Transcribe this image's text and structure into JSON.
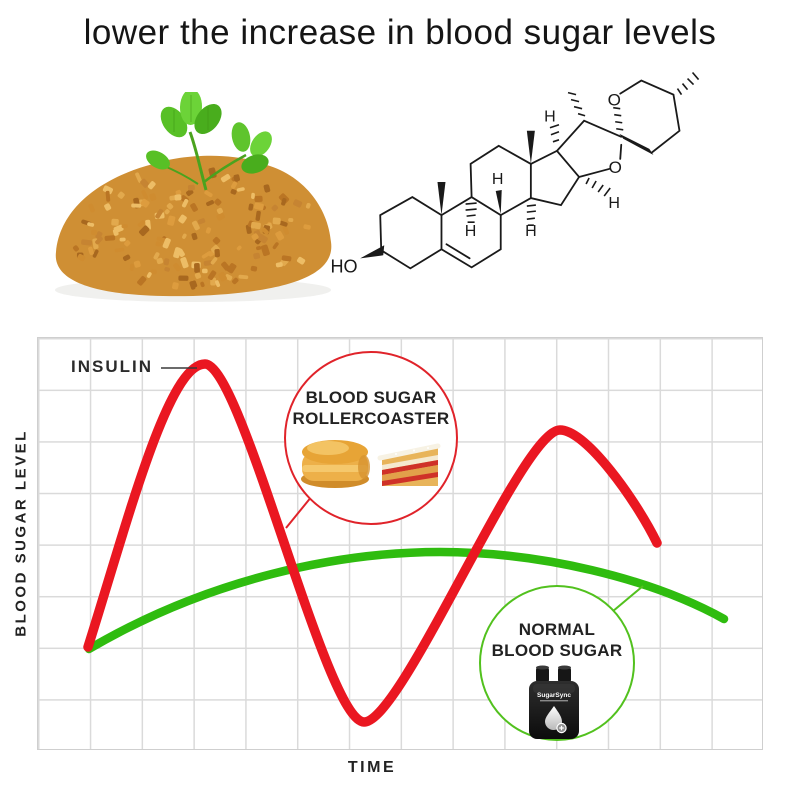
{
  "title": "lower the increase in blood sugar levels",
  "hero": {
    "fenugreek_image": "pile of fenugreek seeds with green trifoliate leaves",
    "molecule": {
      "hydroxyl": "HO",
      "hydrogen": "H",
      "oxygen": "O"
    }
  },
  "chart": {
    "ylabel": "BLOOD SUGAR LEVEL",
    "xlabel": "TIME",
    "insulin_label": "INSULIN",
    "rollercoaster": {
      "line1": "BLOOD SUGAR",
      "line2": "ROLLERCOASTER"
    },
    "normal": {
      "line1": "NORMAL",
      "line2": "BLOOD SUGAR"
    },
    "device_brand": "SugarSync"
  },
  "chart_data": {
    "type": "line",
    "title": "",
    "xlabel": "TIME",
    "ylabel": "BLOOD SUGAR LEVEL",
    "grid": true,
    "x_gridline_count": 14,
    "y_gridline_count": 8,
    "axis_values_labeled": false,
    "series": [
      {
        "name": "INSULIN (blood sugar rollercoaster)",
        "color": "#ea1721",
        "shape": "large spike, deep dip, second spike",
        "points_in_grid_units": [
          [
            1.0,
            2.0
          ],
          [
            3.25,
            7.5
          ],
          [
            6.35,
            0.55
          ],
          [
            10.2,
            6.2
          ],
          [
            12.1,
            4.0
          ]
        ]
      },
      {
        "name": "NORMAL BLOOD SUGAR",
        "color": "#2fbc0f",
        "shape": "gentle flat arc",
        "points_in_grid_units": [
          [
            1.0,
            2.0
          ],
          [
            4.0,
            3.3
          ],
          [
            7.7,
            3.85
          ],
          [
            11.0,
            3.3
          ],
          [
            13.4,
            2.55
          ]
        ]
      }
    ],
    "annotations": [
      {
        "text": "INSULIN",
        "points_to": "first red peak"
      },
      {
        "text": "BLOOD SUGAR ROLLERCOASTER",
        "points_to": "red curve descent"
      },
      {
        "text": "NORMAL BLOOD SUGAR",
        "points_to": "green curve"
      }
    ]
  },
  "colors": {
    "red": "#ea1721",
    "green": "#2fbc0f",
    "circle_red": "#e0232a",
    "circle_green": "#52c11e",
    "grid": "#dadada",
    "text": "#1c1c1c"
  }
}
